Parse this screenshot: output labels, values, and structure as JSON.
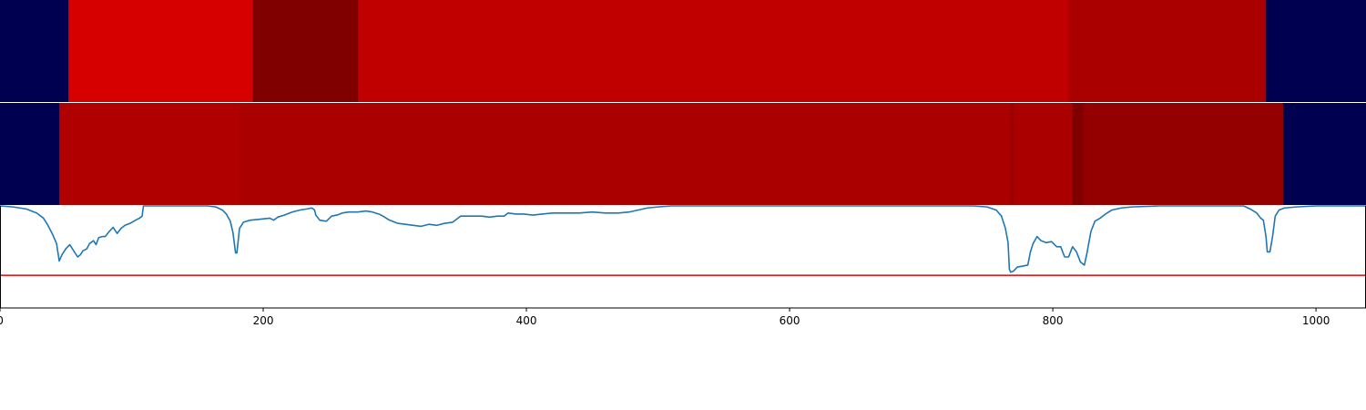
{
  "chart_data": {
    "type": "heatmap",
    "x_range": [
      0,
      1038
    ],
    "x_ticks": [
      {
        "value": 0,
        "label": "0"
      },
      {
        "value": 200,
        "label": "200"
      },
      {
        "value": 400,
        "label": "400"
      },
      {
        "value": 600,
        "label": "600"
      },
      {
        "value": 800,
        "label": "800"
      },
      {
        "value": 1000,
        "label": "1000"
      }
    ],
    "tracks": [
      {
        "segments": [
          {
            "start": 0,
            "end": 52,
            "color": "#000050"
          },
          {
            "start": 52,
            "end": 192,
            "color": "#d70000"
          },
          {
            "start": 192,
            "end": 272,
            "color": "#800000"
          },
          {
            "start": 272,
            "end": 812,
            "color": "#c00000"
          },
          {
            "start": 812,
            "end": 962,
            "color": "#aa0000"
          },
          {
            "start": 962,
            "end": 1038,
            "color": "#000050"
          }
        ]
      },
      {
        "segments": [
          {
            "start": 0,
            "end": 45,
            "color": "#000050"
          },
          {
            "start": 45,
            "end": 182,
            "color": "#b00000"
          },
          {
            "start": 182,
            "end": 768,
            "color": "#aa0000"
          },
          {
            "start": 768,
            "end": 770,
            "color": "#990000"
          },
          {
            "start": 770,
            "end": 815,
            "color": "#aa0000"
          },
          {
            "start": 815,
            "end": 823,
            "color": "#800000"
          },
          {
            "start": 823,
            "end": 975,
            "color": "#940000"
          },
          {
            "start": 975,
            "end": 1038,
            "color": "#000050"
          }
        ]
      }
    ],
    "line_series": {
      "color": "#1f77b4",
      "ylim": [
        0,
        1
      ],
      "points": [
        [
          0,
          1.0
        ],
        [
          10,
          0.99
        ],
        [
          20,
          0.97
        ],
        [
          28,
          0.93
        ],
        [
          33,
          0.88
        ],
        [
          36,
          0.82
        ],
        [
          40,
          0.72
        ],
        [
          43,
          0.63
        ],
        [
          45,
          0.46
        ],
        [
          47,
          0.52
        ],
        [
          50,
          0.58
        ],
        [
          53,
          0.62
        ],
        [
          56,
          0.56
        ],
        [
          59,
          0.5
        ],
        [
          61,
          0.52
        ],
        [
          63,
          0.56
        ],
        [
          66,
          0.58
        ],
        [
          68,
          0.63
        ],
        [
          71,
          0.66
        ],
        [
          73,
          0.62
        ],
        [
          75,
          0.69
        ],
        [
          78,
          0.7
        ],
        [
          80,
          0.7
        ],
        [
          83,
          0.75
        ],
        [
          86,
          0.79
        ],
        [
          89,
          0.73
        ],
        [
          92,
          0.78
        ],
        [
          95,
          0.81
        ],
        [
          99,
          0.83
        ],
        [
          103,
          0.86
        ],
        [
          106,
          0.88
        ],
        [
          108,
          0.9
        ],
        [
          109,
          1.0
        ],
        [
          120,
          1.0
        ],
        [
          140,
          1.0
        ],
        [
          158,
          1.0
        ],
        [
          164,
          0.99
        ],
        [
          169,
          0.96
        ],
        [
          172,
          0.92
        ],
        [
          175,
          0.85
        ],
        [
          177,
          0.74
        ],
        [
          179,
          0.54
        ],
        [
          180,
          0.54
        ],
        [
          182,
          0.78
        ],
        [
          185,
          0.84
        ],
        [
          190,
          0.86
        ],
        [
          198,
          0.87
        ],
        [
          205,
          0.88
        ],
        [
          208,
          0.86
        ],
        [
          211,
          0.89
        ],
        [
          216,
          0.91
        ],
        [
          222,
          0.94
        ],
        [
          228,
          0.96
        ],
        [
          233,
          0.97
        ],
        [
          237,
          0.98
        ],
        [
          239,
          0.96
        ],
        [
          240,
          0.91
        ],
        [
          243,
          0.86
        ],
        [
          248,
          0.85
        ],
        [
          252,
          0.9
        ],
        [
          256,
          0.91
        ],
        [
          260,
          0.93
        ],
        [
          265,
          0.94
        ],
        [
          272,
          0.94
        ],
        [
          278,
          0.95
        ],
        [
          283,
          0.94
        ],
        [
          288,
          0.92
        ],
        [
          291,
          0.9
        ],
        [
          296,
          0.86
        ],
        [
          302,
          0.83
        ],
        [
          308,
          0.82
        ],
        [
          314,
          0.81
        ],
        [
          320,
          0.8
        ],
        [
          326,
          0.82
        ],
        [
          332,
          0.81
        ],
        [
          338,
          0.83
        ],
        [
          344,
          0.84
        ],
        [
          350,
          0.9
        ],
        [
          358,
          0.9
        ],
        [
          366,
          0.9
        ],
        [
          372,
          0.89
        ],
        [
          378,
          0.9
        ],
        [
          383,
          0.9
        ],
        [
          386,
          0.93
        ],
        [
          392,
          0.92
        ],
        [
          398,
          0.92
        ],
        [
          405,
          0.91
        ],
        [
          412,
          0.92
        ],
        [
          420,
          0.93
        ],
        [
          430,
          0.93
        ],
        [
          440,
          0.93
        ],
        [
          450,
          0.94
        ],
        [
          460,
          0.93
        ],
        [
          470,
          0.93
        ],
        [
          478,
          0.94
        ],
        [
          485,
          0.96
        ],
        [
          492,
          0.98
        ],
        [
          500,
          0.99
        ],
        [
          510,
          1.0
        ],
        [
          600,
          1.0
        ],
        [
          700,
          1.0
        ],
        [
          740,
          1.0
        ],
        [
          750,
          0.99
        ],
        [
          757,
          0.96
        ],
        [
          761,
          0.9
        ],
        [
          764,
          0.78
        ],
        [
          766,
          0.64
        ],
        [
          767,
          0.38
        ],
        [
          768,
          0.35
        ],
        [
          770,
          0.36
        ],
        [
          773,
          0.4
        ],
        [
          777,
          0.41
        ],
        [
          781,
          0.42
        ],
        [
          783,
          0.55
        ],
        [
          785,
          0.63
        ],
        [
          788,
          0.7
        ],
        [
          791,
          0.66
        ],
        [
          795,
          0.64
        ],
        [
          799,
          0.65
        ],
        [
          803,
          0.6
        ],
        [
          806,
          0.6
        ],
        [
          809,
          0.5
        ],
        [
          812,
          0.5
        ],
        [
          815,
          0.6
        ],
        [
          818,
          0.55
        ],
        [
          821,
          0.45
        ],
        [
          824,
          0.42
        ],
        [
          826,
          0.54
        ],
        [
          829,
          0.75
        ],
        [
          832,
          0.85
        ],
        [
          836,
          0.88
        ],
        [
          840,
          0.92
        ],
        [
          845,
          0.96
        ],
        [
          852,
          0.98
        ],
        [
          860,
          0.99
        ],
        [
          880,
          1.0
        ],
        [
          920,
          1.0
        ],
        [
          945,
          1.0
        ],
        [
          950,
          0.97
        ],
        [
          955,
          0.93
        ],
        [
          958,
          0.88
        ],
        [
          960,
          0.86
        ],
        [
          962,
          0.7
        ],
        [
          963,
          0.55
        ],
        [
          965,
          0.55
        ],
        [
          967,
          0.7
        ],
        [
          969,
          0.9
        ],
        [
          972,
          0.96
        ],
        [
          976,
          0.98
        ],
        [
          985,
          0.99
        ],
        [
          1000,
          1.0
        ],
        [
          1038,
          1.0
        ]
      ]
    },
    "threshold": {
      "value": 0.32,
      "color": "#e41a1c"
    }
  }
}
